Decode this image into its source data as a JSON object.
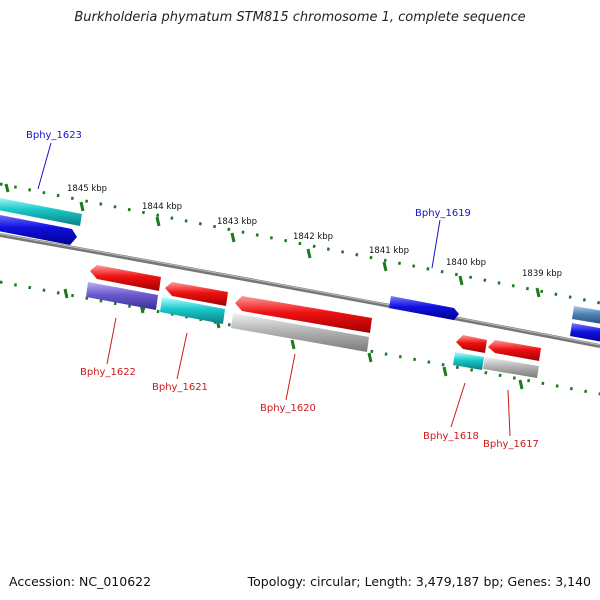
{
  "title": "Burkholderia phymatum STM815 chromosome 1, complete sequence",
  "footer": {
    "accession": "Accession: NC_010622",
    "summary": "Topology: circular; Length: 3,479,187 bp; Genes: 3,140"
  },
  "ticks": [
    "1845 kbp",
    "1844 kbp",
    "1843 kbp",
    "1842 kbp",
    "1841 kbp",
    "1840 kbp",
    "1839 kbp"
  ],
  "gene_labels": {
    "forward": [
      "Bphy_1623",
      "Bphy_1619"
    ],
    "reverse": [
      "Bphy_1622",
      "Bphy_1621",
      "Bphy_1620",
      "Bphy_1618",
      "Bphy_1617"
    ]
  },
  "colors": {
    "forward_label": "#1515c8",
    "reverse_label": "#cc1a1a",
    "backbone": "#777777",
    "tick_marks": "#1c7a1c",
    "gene_red": "#ee1111",
    "gene_blue": "#1010e0",
    "gene_cyan": "#19c8c8",
    "gene_purple": "#6a5acd",
    "gene_gray": "#b4b4b4",
    "gene_steel": "#4a7fb0"
  }
}
